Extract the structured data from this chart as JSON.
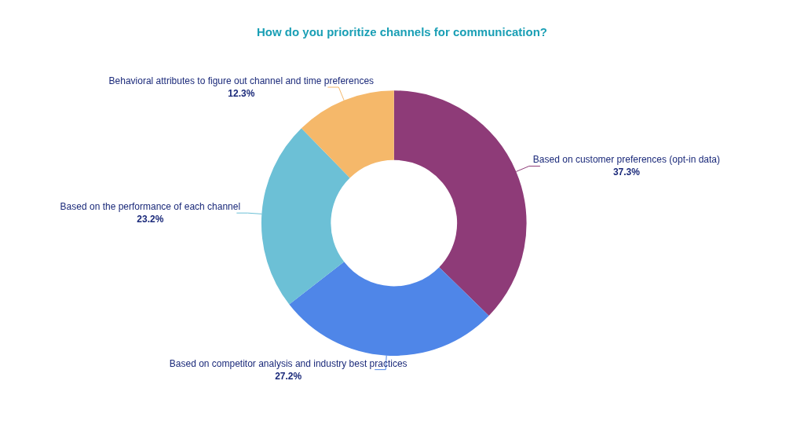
{
  "chart_data": {
    "type": "donut",
    "title": "How do you prioritize channels for communication?",
    "categories": [
      "Based on customer preferences (opt-in data)",
      "Based on competitor analysis and industry best practices",
      "Based on the performance of each channel",
      "Behavioral attributes to figure out channel and time preferences"
    ],
    "values": [
      37.3,
      27.2,
      23.2,
      12.3
    ],
    "value_labels": [
      "37.3%",
      "27.2%",
      "23.2%",
      "12.3%"
    ],
    "colors": [
      "#8e3b78",
      "#4f86e8",
      "#6cc0d6",
      "#f5b86a"
    ],
    "legend": false
  }
}
